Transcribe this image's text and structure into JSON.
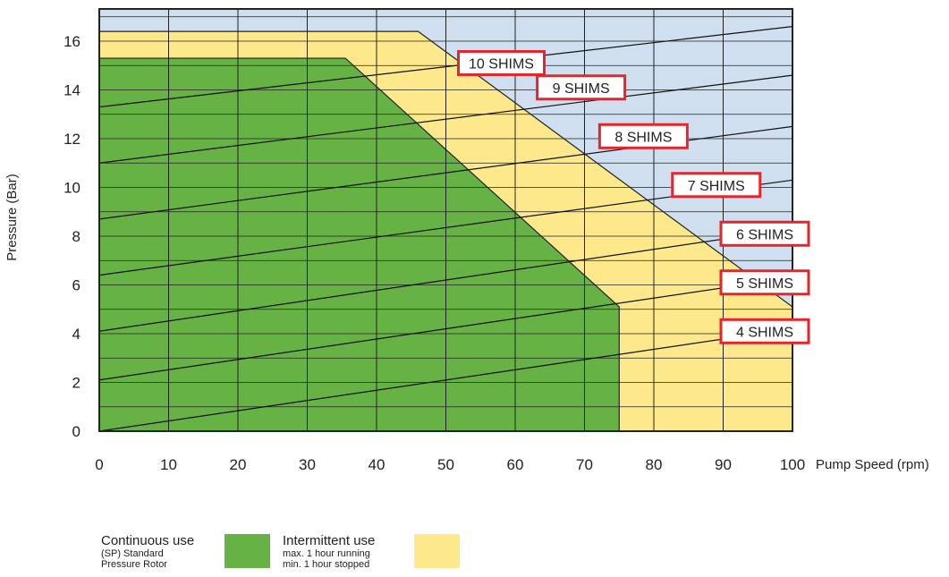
{
  "chart_data": {
    "type": "area",
    "xlabel": "Pump Speed (rpm)",
    "ylabel": "Pressure (Bar)",
    "xlim": [
      0,
      100
    ],
    "ylim": [
      0,
      17
    ],
    "x_ticks": [
      0,
      10,
      20,
      30,
      40,
      50,
      60,
      70,
      80,
      90,
      100
    ],
    "y_ticks": [
      0,
      2,
      4,
      6,
      8,
      10,
      12,
      14,
      16
    ],
    "grid": true,
    "background_color": "#cfdff0",
    "regions": [
      {
        "name": "Intermittent use",
        "color": "#fde98c",
        "boundary": [
          [
            0,
            0
          ],
          [
            0,
            16.4
          ],
          [
            46,
            16.4
          ],
          [
            100,
            5.1
          ],
          [
            100,
            0
          ]
        ]
      },
      {
        "name": "Continuous use",
        "color": "#66b245",
        "boundary": [
          [
            0,
            0
          ],
          [
            0,
            15.3
          ],
          [
            35.5,
            15.3
          ],
          [
            75,
            5.1
          ],
          [
            75,
            0
          ]
        ]
      }
    ],
    "shim_lines": [
      {
        "label": "4 SHIMS",
        "start": [
          0,
          0
        ],
        "end": [
          100,
          4.2
        ],
        "label_at": [
          96,
          4.1
        ]
      },
      {
        "label": "5 SHIMS",
        "start": [
          0,
          2.1
        ],
        "end": [
          100,
          6.3
        ],
        "label_at": [
          96,
          6.1
        ]
      },
      {
        "label": "6 SHIMS",
        "start": [
          0,
          4.1
        ],
        "end": [
          100,
          8.3
        ],
        "label_at": [
          96,
          8.1
        ]
      },
      {
        "label": "7 SHIMS",
        "start": [
          0,
          6.4
        ],
        "end": [
          100,
          10.3
        ],
        "label_at": [
          89,
          10.1
        ]
      },
      {
        "label": "8 SHIMS",
        "start": [
          0,
          8.7
        ],
        "end": [
          100,
          12.5
        ],
        "label_at": [
          78.5,
          12.1
        ]
      },
      {
        "label": "9 SHIMS",
        "start": [
          0,
          11.0
        ],
        "end": [
          100,
          14.6
        ],
        "label_at": [
          69.5,
          14.1
        ]
      },
      {
        "label": "10 SHIMS",
        "start": [
          0,
          13.3
        ],
        "end": [
          100,
          16.6
        ],
        "label_at": [
          58,
          15.1
        ]
      }
    ]
  },
  "legend": {
    "continuous_title": "Continuous use",
    "continuous_sub1": "(SP) Standard",
    "continuous_sub2": "Pressure Rotor",
    "continuous_color": "#66b245",
    "intermittent_title": "Intermittent use",
    "intermittent_sub1": "max. 1 hour running",
    "intermittent_sub2": "min. 1 hour stopped",
    "intermittent_color": "#fde98c"
  }
}
